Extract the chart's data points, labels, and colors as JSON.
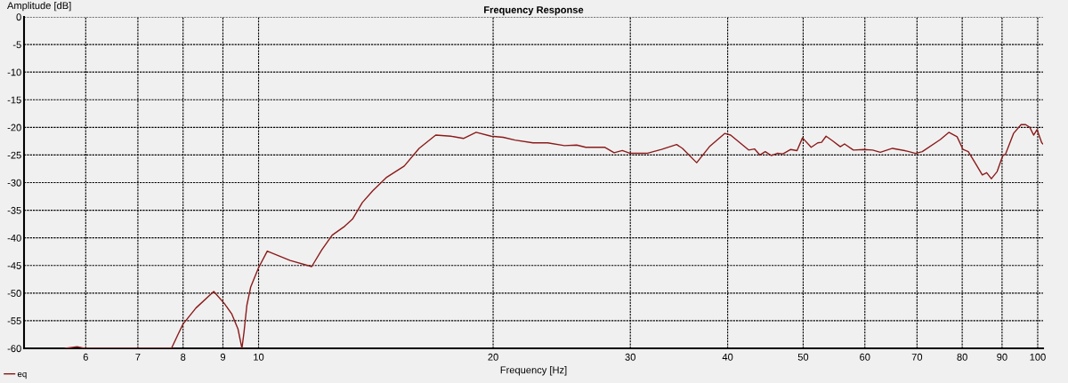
{
  "chart_data": {
    "type": "line",
    "title": "Frequency Response",
    "xlabel": "Frequency [Hz]",
    "ylabel": "Amplitude [dB]",
    "log": "x",
    "xlim": [
      5,
      101.6
    ],
    "ylim": [
      -60,
      0
    ],
    "xticks": [
      6,
      7,
      8,
      9,
      10,
      20,
      30,
      40,
      50,
      60,
      70,
      80,
      90,
      100
    ],
    "yticks": [
      0,
      -5,
      -10,
      -15,
      -20,
      -25,
      -30,
      -35,
      -40,
      -45,
      -50,
      -55,
      -60
    ],
    "grid": true,
    "legend": "bottom left",
    "marker": "none",
    "line_style": "solid",
    "series": [
      {
        "name": "eq",
        "color": "#8b1a1a",
        "x": [
          5.65,
          5.85,
          5.98,
          7.73,
          7.88,
          8.0,
          8.31,
          8.76,
          9.04,
          9.24,
          9.41,
          9.52,
          9.58,
          9.66,
          9.77,
          10.0,
          10.26,
          10.98,
          11.7,
          12.05,
          12.43,
          12.9,
          13.2,
          13.59,
          14.01,
          14.58,
          15.38,
          16.07,
          16.88,
          17.64,
          18.32,
          19.02,
          19.88,
          20.6,
          21.33,
          22.5,
          23.5,
          24.7,
          25.6,
          26.3,
          27.8,
          28.6,
          29.3,
          30.0,
          31.5,
          32.9,
          34.4,
          35.0,
          36.5,
          37.9,
          39.65,
          40.35,
          42.56,
          43.3,
          44.0,
          44.7,
          45.5,
          46.3,
          47.1,
          48.2,
          49.1,
          49.9,
          51.2,
          52.2,
          52.8,
          53.5,
          54.5,
          55.8,
          56.5,
          58.0,
          59.8,
          61.4,
          62.8,
          65.1,
          68.0,
          69.7,
          71.1,
          75.0,
          76.9,
          78.8,
          80.2,
          81.45,
          83.1,
          84.9,
          86.0,
          87.2,
          88.7,
          90.2,
          90.9,
          93.1,
          95.2,
          96.5,
          97.7,
          98.8,
          99.8,
          101.2,
          101.6
        ],
        "values": [
          -60,
          -59.7,
          -60,
          -60,
          -57.5,
          -55.6,
          -52.7,
          -49.7,
          -51.9,
          -53.8,
          -56.5,
          -60,
          -57,
          -52.2,
          -48.9,
          -45.4,
          -42.4,
          -44.1,
          -45.2,
          -42.2,
          -39.5,
          -37.9,
          -36.6,
          -33.6,
          -31.5,
          -29.1,
          -27.0,
          -23.8,
          -21.4,
          -21.6,
          -22.0,
          -20.9,
          -21.6,
          -21.8,
          -22.3,
          -22.8,
          -22.8,
          -23.3,
          -23.2,
          -23.6,
          -23.6,
          -24.6,
          -24.2,
          -24.7,
          -24.7,
          -24.0,
          -23.1,
          -23.8,
          -26.4,
          -23.5,
          -21.1,
          -21.4,
          -24.1,
          -23.9,
          -25.0,
          -24.4,
          -25.1,
          -24.7,
          -24.8,
          -24.0,
          -24.2,
          -21.9,
          -23.6,
          -22.8,
          -22.7,
          -21.6,
          -22.4,
          -23.5,
          -23.0,
          -24.1,
          -24.0,
          -24.1,
          -24.5,
          -23.8,
          -24.3,
          -24.7,
          -24.4,
          -22.2,
          -20.9,
          -21.7,
          -24.0,
          -24.4,
          -26.4,
          -28.6,
          -28.2,
          -29.3,
          -28.0,
          -25.1,
          -24.9,
          -21.1,
          -19.5,
          -19.5,
          -20.0,
          -21.4,
          -20.4,
          -22.8,
          -23.0
        ]
      }
    ]
  }
}
